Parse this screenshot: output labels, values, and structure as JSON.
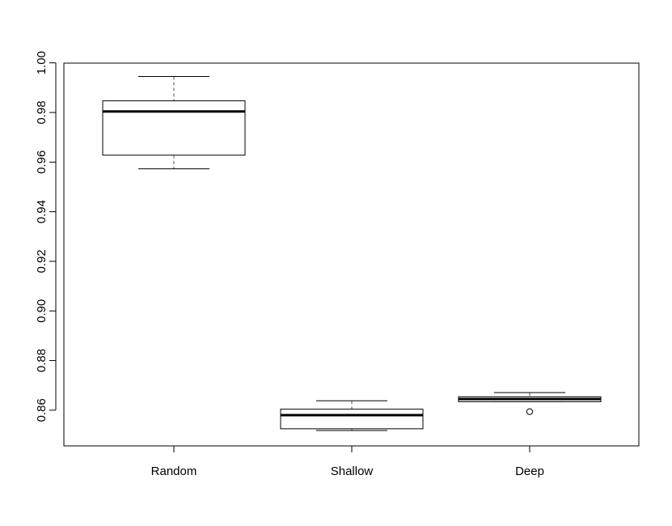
{
  "chart_data": {
    "type": "boxplot",
    "title": "",
    "xlabel": "",
    "ylabel": "",
    "categories": [
      "Random",
      "Shallow",
      "Deep"
    ],
    "boxes": [
      {
        "category": "Random",
        "whisker_low": 0.9573,
        "q1": 0.9628,
        "median": 0.9804,
        "q3": 0.9847,
        "whisker_high": 0.9945,
        "outliers": []
      },
      {
        "category": "Shallow",
        "whisker_low": 0.8518,
        "q1": 0.8525,
        "median": 0.858,
        "q3": 0.8604,
        "whisker_high": 0.8638,
        "outliers": []
      },
      {
        "category": "Deep",
        "whisker_low": 0.8634,
        "q1": 0.8634,
        "median": 0.8645,
        "q3": 0.8654,
        "whisker_high": 0.8671,
        "outliers": [
          0.8594
        ]
      }
    ],
    "ylim": [
      0.8456,
      0.9999
    ],
    "y_ticks": [
      "0.86",
      "0.88",
      "0.90",
      "0.92",
      "0.94",
      "0.96",
      "0.98",
      "1.00"
    ],
    "grid": false,
    "legend": "none",
    "colors": {
      "box_stroke": "#000000",
      "box_fill": "#ffffff",
      "median": "#000000",
      "whisker": "#555555"
    }
  }
}
